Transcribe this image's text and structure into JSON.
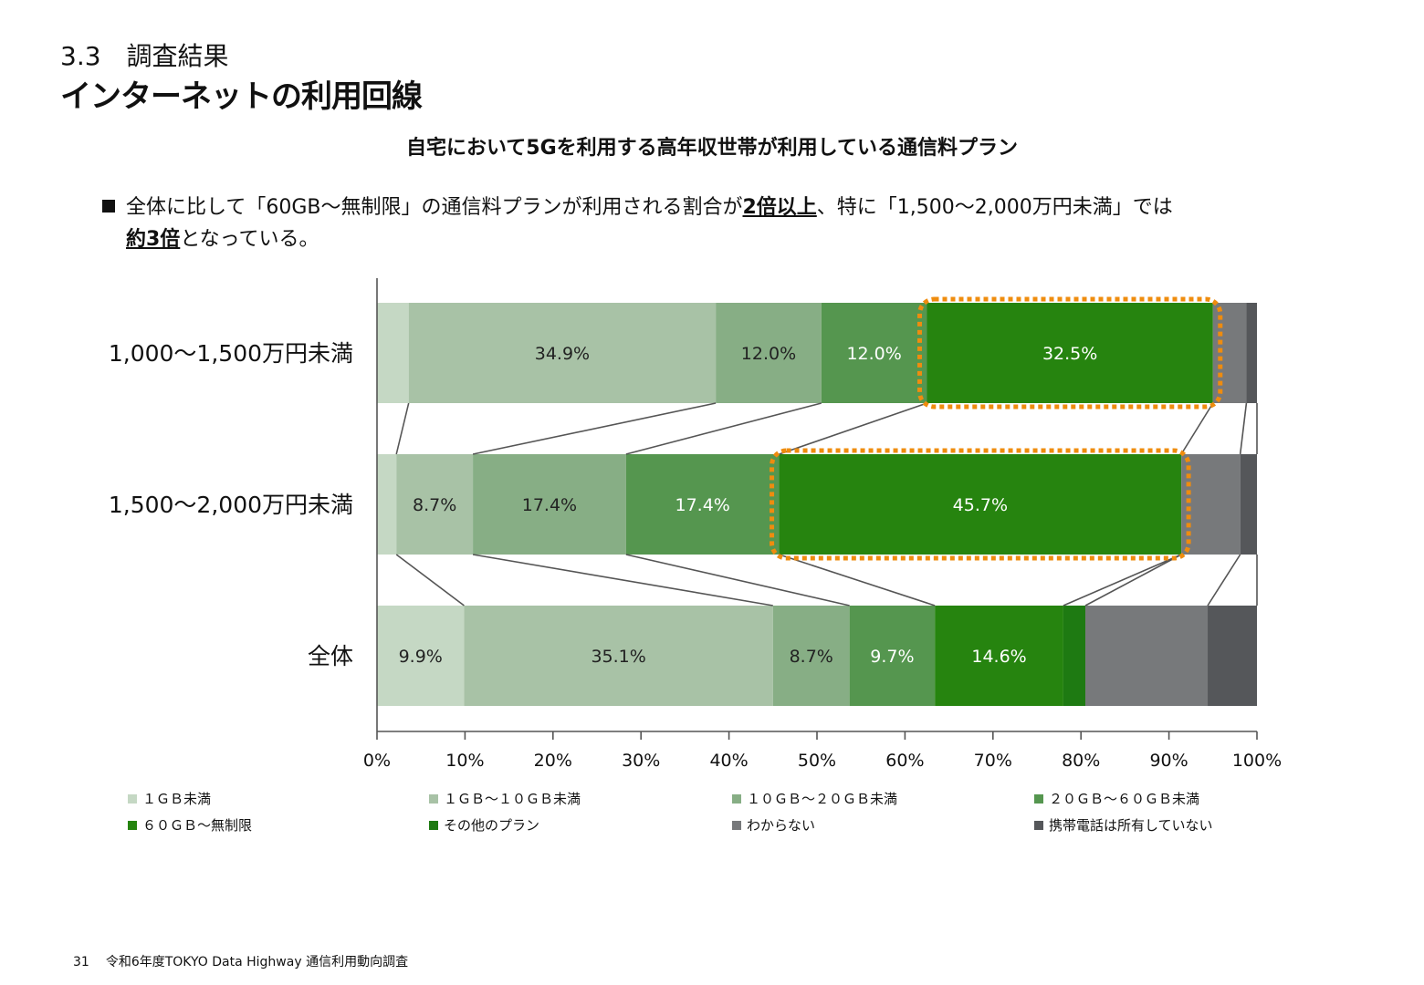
{
  "header": {
    "section_number": "3.3　調査結果",
    "page_title": "インターネットの利用回線"
  },
  "note": {
    "line1_a": "全体に比して「60GB～無制限」の通信料プランが利用される割合が",
    "line1_b": "2倍以上",
    "line1_c": "、特に「1,500～2,000万円未満」では",
    "line2_a": "約3倍",
    "line2_b": "となっている。"
  },
  "chart_data": {
    "type": "bar",
    "orientation": "horizontal",
    "stacked": true,
    "title": "自宅において5Gを利用する高年収世帯が利用している通信料プラン",
    "categories": [
      "1,000～1,500万円未満",
      "1,500～2,000万円未満",
      "全体"
    ],
    "xlim": [
      0,
      100
    ],
    "x_ticks": [
      "0%",
      "10%",
      "20%",
      "30%",
      "40%",
      "50%",
      "60%",
      "70%",
      "80%",
      "90%",
      "100%"
    ],
    "legend_position": "bottom",
    "series": [
      {
        "name": "１ＧＢ未満",
        "color": "#c5d8c4",
        "label_color": "#222222",
        "values": [
          3.6,
          2.2,
          9.9
        ],
        "labels": [
          "",
          "",
          "9.9%"
        ]
      },
      {
        "name": "１ＧＢ～１０ＧＢ未満",
        "color": "#a8c2a6",
        "label_color": "#222222",
        "values": [
          34.9,
          8.7,
          35.1
        ],
        "labels": [
          "34.9%",
          "8.7%",
          "35.1%"
        ]
      },
      {
        "name": "１０ＧＢ～２０ＧＢ未満",
        "color": "#87ae85",
        "label_color": "#222222",
        "values": [
          12.0,
          17.4,
          8.7
        ],
        "labels": [
          "12.0%",
          "17.4%",
          "8.7%"
        ]
      },
      {
        "name": "２０ＧＢ～６０ＧＢ未満",
        "color": "#55964f",
        "label_color": "#ffffff",
        "values": [
          12.0,
          17.4,
          9.7
        ],
        "labels": [
          "12.0%",
          "17.4%",
          "9.7%"
        ]
      },
      {
        "name": "６０ＧＢ～無制限",
        "color": "#26840f",
        "label_color": "#ffffff",
        "values": [
          32.5,
          45.7,
          14.6
        ],
        "labels": [
          "32.5%",
          "45.7%",
          "14.6%"
        ]
      },
      {
        "name": "その他のプラン",
        "color": "#1e7a12",
        "label_color": "#ffffff",
        "values": [
          0.0,
          0.0,
          2.5
        ],
        "labels": [
          "",
          "",
          ""
        ]
      },
      {
        "name": "わからない",
        "color": "#77797b",
        "label_color": "#ffffff",
        "values": [
          3.8,
          6.7,
          13.9
        ],
        "labels": [
          "",
          "",
          ""
        ]
      },
      {
        "name": "携帯電話は所有していない",
        "color": "#55575a",
        "label_color": "#ffffff",
        "values": [
          1.2,
          1.9,
          5.6
        ],
        "labels": [
          "",
          "",
          ""
        ]
      }
    ],
    "highlight_series": "６０ＧＢ～無制限",
    "highlight_color": "#ef8c0e"
  },
  "footer": {
    "page_number": "31",
    "source": "令和6年度TOKYO Data Highway 通信利用動向調査"
  }
}
